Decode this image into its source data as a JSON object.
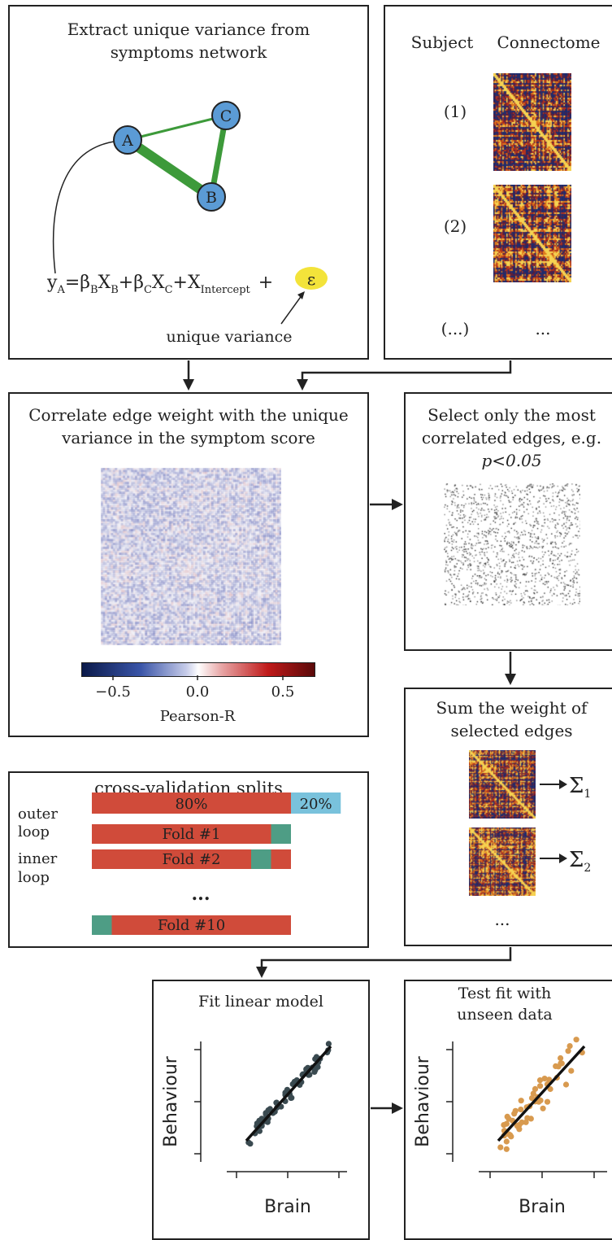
{
  "network_panel": {
    "title_line1": "Extract unique variance from",
    "title_line2": "symptoms network",
    "nodes": [
      "A",
      "B",
      "C"
    ],
    "equation": {
      "y": "y",
      "y_sub": "A",
      "b1": "β",
      "b1_sub": "B",
      "x1": "X",
      "x1_sub": "B",
      "b2": "β",
      "b2_sub": "C",
      "x2": "X",
      "x2_sub": "C",
      "x3": "X",
      "x3_sub": "Intercept",
      "eps": "ε"
    },
    "annotation": "unique variance",
    "colors": {
      "node": "#5b9bd5",
      "edge": "#3d9a3a",
      "highlight": "#f3e33a"
    }
  },
  "connectome_panel": {
    "col_subject": "Subject",
    "col_connectome": "Connectome",
    "rows": [
      "(1)",
      "(2)",
      "(...)"
    ],
    "ellipsis": "..."
  },
  "correlate_panel": {
    "title_line1": "Correlate edge weight with the unique",
    "title_line2": "variance in the symptom score",
    "colorbar_ticks": [
      "−0.5",
      "0.0",
      "0.5"
    ],
    "colorbar_label": "Pearson-R",
    "colorbar_range": [
      -0.6,
      0.6
    ]
  },
  "select_panel": {
    "title_line1": "Select only the most",
    "title_line2": "correlated edges, e.g.",
    "title_line3": "p<0.05"
  },
  "sum_panel": {
    "title_line1": "Sum the weight of",
    "title_line2": "selected edges",
    "sums": [
      "Σ",
      "Σ"
    ],
    "sum_subs": [
      "1",
      "2"
    ],
    "ellipsis": "..."
  },
  "cv_panel": {
    "title": "cross-validation splits",
    "outer_label_1": "outer",
    "outer_label_2": "loop",
    "inner_label_1": "inner",
    "inner_label_2": "loop",
    "train_label": "80%",
    "test_label": "20%",
    "train_fraction": 0.8,
    "folds": [
      {
        "label": "Fold #1",
        "val_start": 0.9,
        "val_end": 1.0
      },
      {
        "label": "Fold #2",
        "val_start": 0.8,
        "val_end": 0.9
      },
      {
        "label": "Fold #10",
        "val_start": 0.0,
        "val_end": 0.1
      }
    ],
    "ellipsis": "...",
    "colors": {
      "train": "#d04b3a",
      "test": "#79c2dc",
      "val": "#4e9d85"
    }
  },
  "fit_panel": {
    "title": "Fit linear model",
    "xlabel": "Brain",
    "ylabel": "Behaviour",
    "color": "#3a4a50"
  },
  "test_panel": {
    "title_line1": "Test fit with",
    "title_line2": "unseen data",
    "xlabel": "Brain",
    "ylabel": "Behaviour",
    "color": "#d89a4f"
  }
}
